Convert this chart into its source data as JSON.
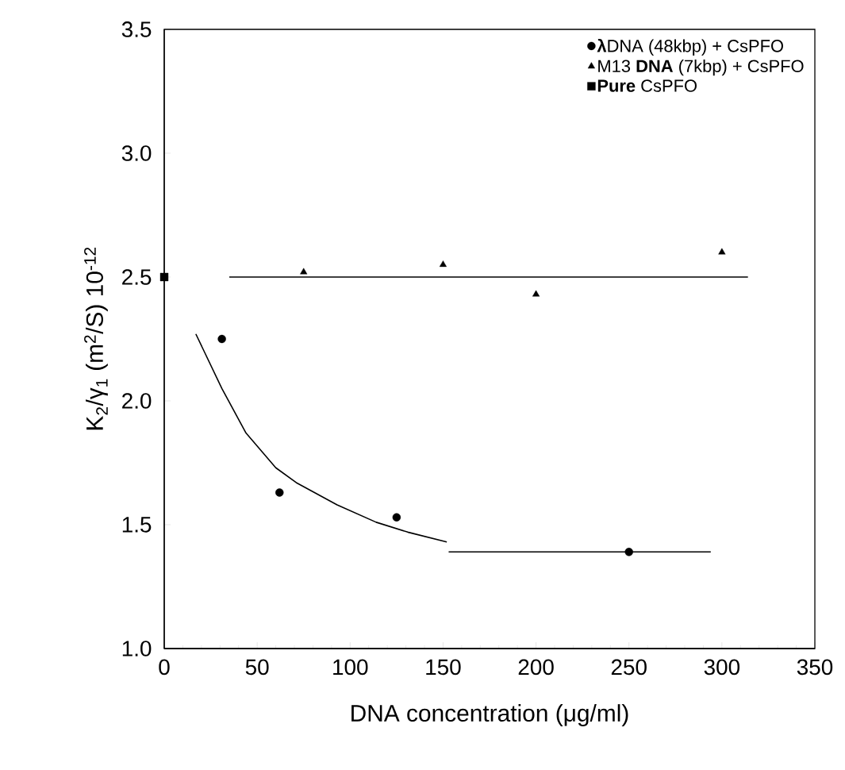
{
  "chart_data": {
    "type": "scatter",
    "xlabel": "DNA concentration (μg/ml)",
    "ylabel": "K$_{2}$/γ$_{1}$ (m$^{2}$/S)  10$^{-12}$",
    "xlim": [
      0,
      350
    ],
    "ylim": [
      1.0,
      3.5
    ],
    "xticks": [
      0,
      50,
      100,
      150,
      200,
      250,
      300,
      350
    ],
    "yticks": [
      {
        "value": 1.0,
        "label": "1.0"
      },
      {
        "value": 1.5,
        "label": "1.5"
      },
      {
        "value": 2.0,
        "label": "2.0"
      },
      {
        "value": 2.5,
        "label": "2.5"
      },
      {
        "value": 3.0,
        "label": "3.0"
      },
      {
        "value": 3.5,
        "label": "3.5"
      }
    ],
    "grid": false,
    "legend": "top right",
    "series": [
      {
        "name": "**λ**DNA (48kbp) + CsPFO",
        "marker": "circle",
        "color": "#000000",
        "x": [
          31,
          62,
          125,
          250
        ],
        "values": [
          2.25,
          1.63,
          1.53,
          1.39
        ]
      },
      {
        "name": "M13 **DNA** (7kbp) + CsPFO",
        "marker": "triangle",
        "color": "#000000",
        "x": [
          75,
          150,
          200,
          300
        ],
        "values": [
          2.52,
          2.55,
          2.43,
          2.6
        ]
      },
      {
        "name": "**Pure** CsPFO",
        "marker": "square",
        "color": "#000000",
        "x": [
          0
        ],
        "values": [
          2.5
        ]
      },
      {
        "type": "line",
        "color": "#000000",
        "x": [
          17,
          31,
          44,
          60,
          71,
          93,
          114,
          131,
          152
        ],
        "values": [
          2.27,
          2.05,
          1.87,
          1.73,
          1.67,
          1.58,
          1.51,
          1.47,
          1.43
        ]
      },
      {
        "type": "line",
        "color": "#000000",
        "x": [
          153,
          294
        ],
        "values": [
          1.39,
          1.39
        ]
      },
      {
        "type": "line",
        "color": "#000000",
        "x": [
          35,
          314
        ],
        "values": [
          2.5,
          2.5
        ]
      }
    ]
  }
}
